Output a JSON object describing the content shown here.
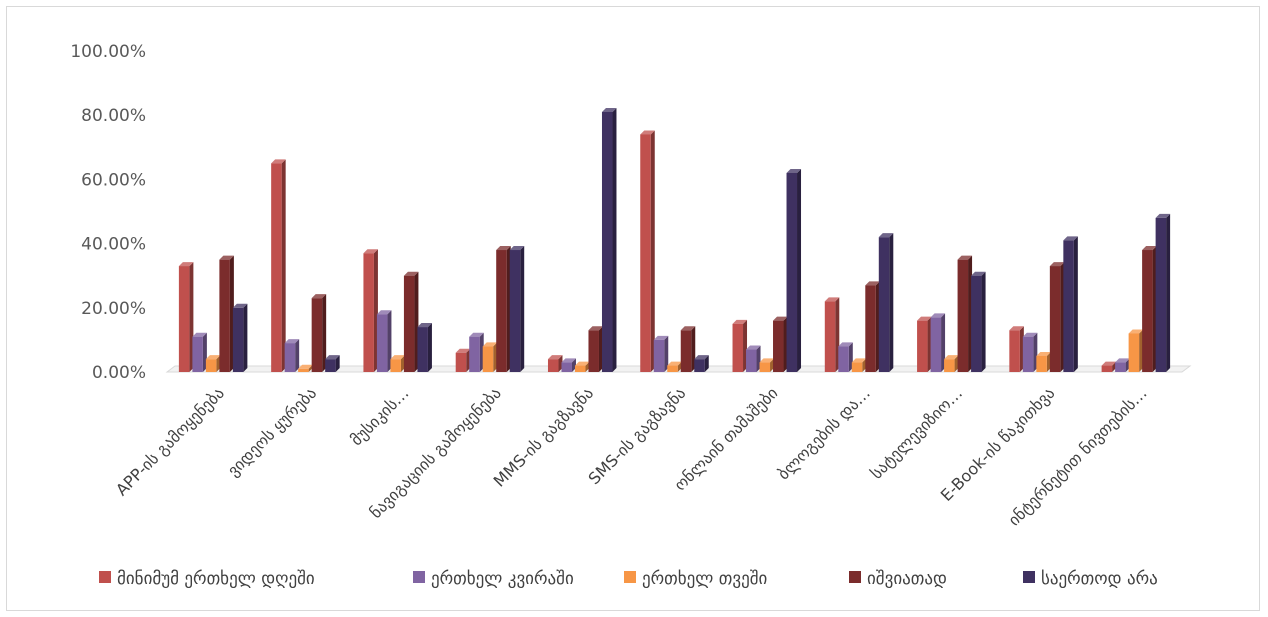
{
  "chart_data": {
    "type": "bar",
    "style": "3d-clustered-column",
    "categories": [
      "APP-ის გამოყენება",
      "ვიდეოს ყურება",
      "მუსიკის…",
      "ნავიგაციის გამოყენება",
      "MMS-ის გაგზავნა",
      "SMS-ის გაგზავნა",
      "ონლაინ თამაშები",
      "ბლოგების და…",
      "სატელევიზიო…",
      "E-Book-ის წაკითხვა",
      "ინტერნეტით ნივთების…"
    ],
    "series": [
      {
        "name": "მინიმუმ ერთხელ დღეში",
        "color": "#c0504d",
        "values": [
          0.33,
          0.65,
          0.37,
          0.06,
          0.04,
          0.74,
          0.15,
          0.22,
          0.16,
          0.13,
          0.02
        ]
      },
      {
        "name": "ერთხელ კვირაში",
        "color": "#8064a2",
        "values": [
          0.11,
          0.09,
          0.18,
          0.11,
          0.03,
          0.1,
          0.07,
          0.08,
          0.17,
          0.11,
          0.03
        ]
      },
      {
        "name": "ერთხელ თვეში",
        "color": "#f79646",
        "values": [
          0.04,
          0.01,
          0.04,
          0.08,
          0.02,
          0.02,
          0.03,
          0.03,
          0.04,
          0.05,
          0.12
        ]
      },
      {
        "name": "იშვიათად",
        "color": "#7b2c2c",
        "values": [
          0.35,
          0.23,
          0.3,
          0.38,
          0.13,
          0.13,
          0.16,
          0.27,
          0.35,
          0.33,
          0.38
        ]
      },
      {
        "name": "საერთოდ არა",
        "color": "#3f3161",
        "values": [
          0.2,
          0.04,
          0.14,
          0.38,
          0.81,
          0.04,
          0.62,
          0.42,
          0.3,
          0.41,
          0.48
        ]
      }
    ],
    "y_ticks": [
      "0.00%",
      "20.00%",
      "40.00%",
      "60.00%",
      "80.00%",
      "100.00%"
    ],
    "ylim": [
      0,
      1
    ],
    "grid": false,
    "legend_position": "bottom"
  }
}
